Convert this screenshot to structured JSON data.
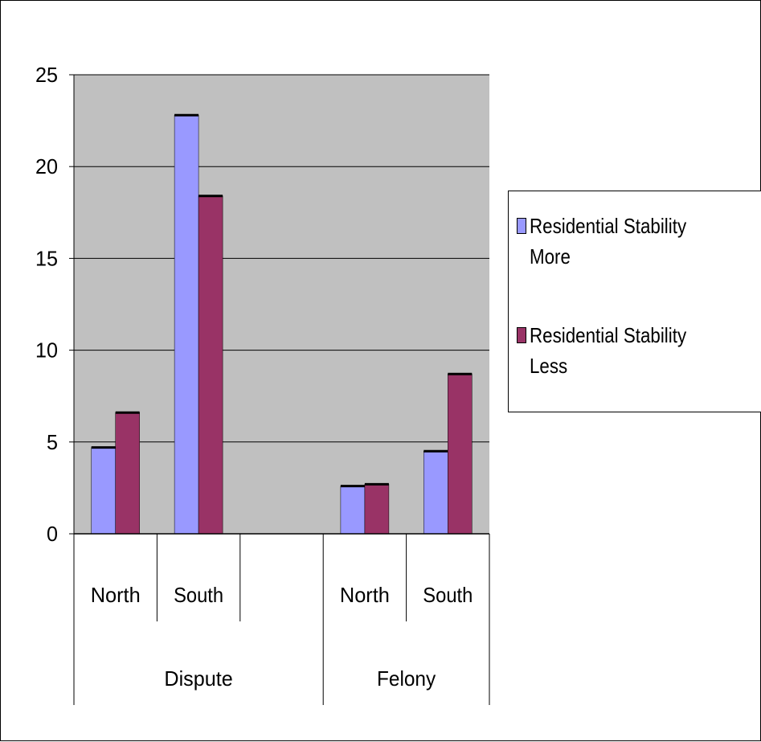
{
  "chart_data": {
    "type": "bar",
    "groups": [
      {
        "label": "Dispute",
        "categories": [
          "North",
          "South"
        ]
      },
      {
        "label": "Felony",
        "categories": [
          "North",
          "South"
        ]
      }
    ],
    "series": [
      {
        "name": "Residential Stability More",
        "color": "#9999FF",
        "values": [
          4.7,
          22.8,
          2.6,
          4.5
        ]
      },
      {
        "name": "Residential Stability Less",
        "color": "#993366",
        "values": [
          6.6,
          18.4,
          2.7,
          8.7
        ]
      }
    ],
    "ylim": [
      0,
      25
    ],
    "yticks": [
      "0",
      "5",
      "10",
      "15",
      "20",
      "25"
    ],
    "plot_background": "#C0C0C0",
    "grid": true,
    "legend_position": "right",
    "title": "",
    "xlabel": "",
    "ylabel": ""
  }
}
